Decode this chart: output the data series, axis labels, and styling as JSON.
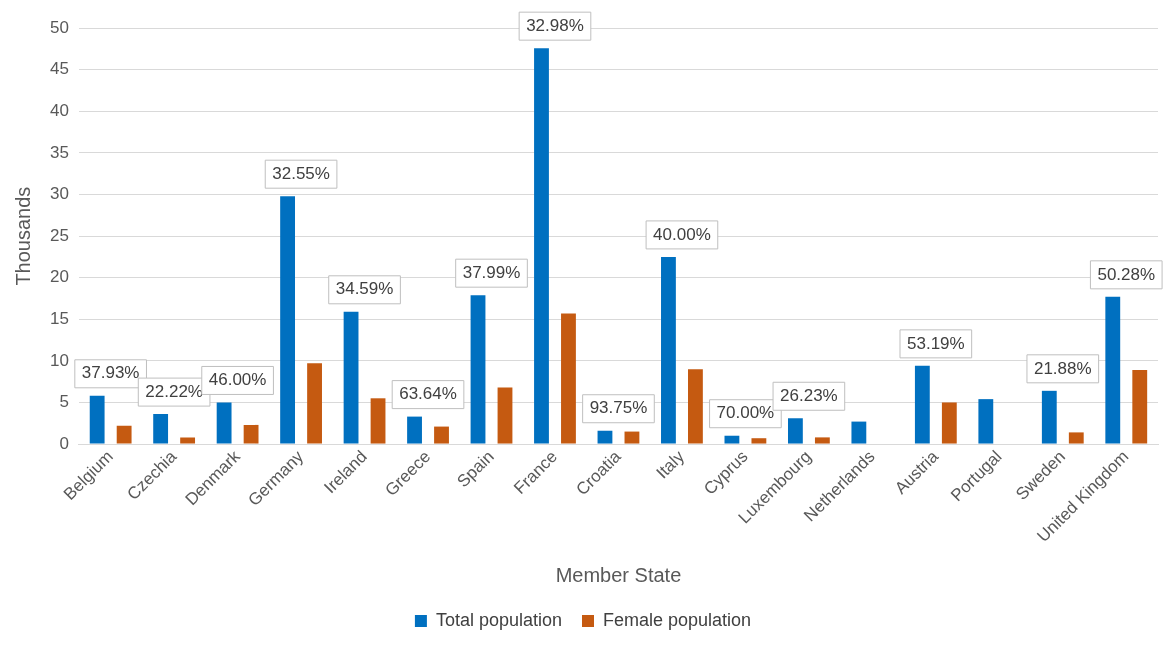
{
  "chart_data": {
    "type": "bar",
    "xlabel": "Member State",
    "ylabel": "Thousands",
    "categories": [
      "Belgium",
      "Czechia",
      "Denmark",
      "Germany",
      "Ireland",
      "Greece",
      "Spain",
      "France",
      "Croatia",
      "Italy",
      "Cyprus",
      "Luxembourg",
      "Netherlands",
      "Austria",
      "Portugal",
      "Sweden",
      "United Kingdom"
    ],
    "series": [
      {
        "name": "Total population",
        "color": "#0070c0",
        "values": [
          5.8,
          3.6,
          5.0,
          29.8,
          15.9,
          3.3,
          17.9,
          47.6,
          1.6,
          22.5,
          1.0,
          3.1,
          2.7,
          9.4,
          5.4,
          6.4,
          17.7
        ]
      },
      {
        "name": "Female population",
        "color": "#c55a11",
        "values": [
          2.2,
          0.8,
          2.3,
          9.7,
          5.5,
          2.1,
          6.8,
          15.7,
          1.5,
          9.0,
          0.7,
          0.8,
          null,
          5.0,
          null,
          1.4,
          8.9
        ]
      }
    ],
    "annotations": [
      "37.93%",
      "22.22%",
      "46.00%",
      "32.55%",
      "34.59%",
      "63.64%",
      "37.99%",
      "32.98%",
      "93.75%",
      "40.00%",
      "70.00%",
      "26.23%",
      "53.19%",
      "21.88%",
      "50.28%"
    ],
    "ylim": [
      0,
      50
    ],
    "yticks": [
      0,
      5,
      10,
      15,
      20,
      25,
      30,
      35,
      40,
      45,
      50
    ],
    "grid": "y",
    "legend": "bottom"
  }
}
